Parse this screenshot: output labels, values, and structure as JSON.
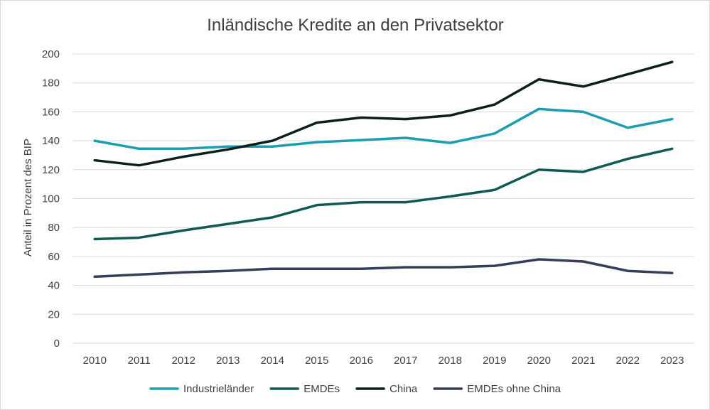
{
  "chart_data": {
    "type": "line",
    "title": "Inländische Kredite an den Privatsektor",
    "xlabel": "",
    "ylabel": "Anteil in Prozent des BIP",
    "ylim": [
      0,
      200
    ],
    "yticks": [
      0,
      20,
      40,
      60,
      80,
      100,
      120,
      140,
      160,
      180,
      200
    ],
    "grid": true,
    "legend_position": "bottom",
    "categories": [
      "2010",
      "2011",
      "2012",
      "2013",
      "2014",
      "2015",
      "2016",
      "2017",
      "2018",
      "2019",
      "2020",
      "2021",
      "2022",
      "2023"
    ],
    "series": [
      {
        "name": "Industrieländer",
        "color": "#1a9fb2",
        "values": [
          140,
          134.5,
          134.5,
          136,
          136,
          139,
          140.5,
          142,
          138.5,
          145,
          162,
          160,
          149,
          155
        ]
      },
      {
        "name": "EMDEs",
        "color": "#0f5a52",
        "values": [
          72,
          73,
          78,
          82.5,
          87,
          95.5,
          97.5,
          97.5,
          101.5,
          106,
          120,
          118.5,
          127.5,
          134.5
        ]
      },
      {
        "name": "China",
        "color": "#0d1f1c",
        "values": [
          126.5,
          123,
          129,
          134,
          140,
          152.5,
          156,
          155,
          157.5,
          165,
          182.5,
          177.5,
          186,
          194.5
        ]
      },
      {
        "name": "EMDEs ohne China",
        "color": "#353f5a",
        "values": [
          46,
          47.5,
          49,
          50,
          51.5,
          51.5,
          51.5,
          52.5,
          52.5,
          53.5,
          58,
          56.5,
          50,
          48.5
        ]
      }
    ]
  }
}
